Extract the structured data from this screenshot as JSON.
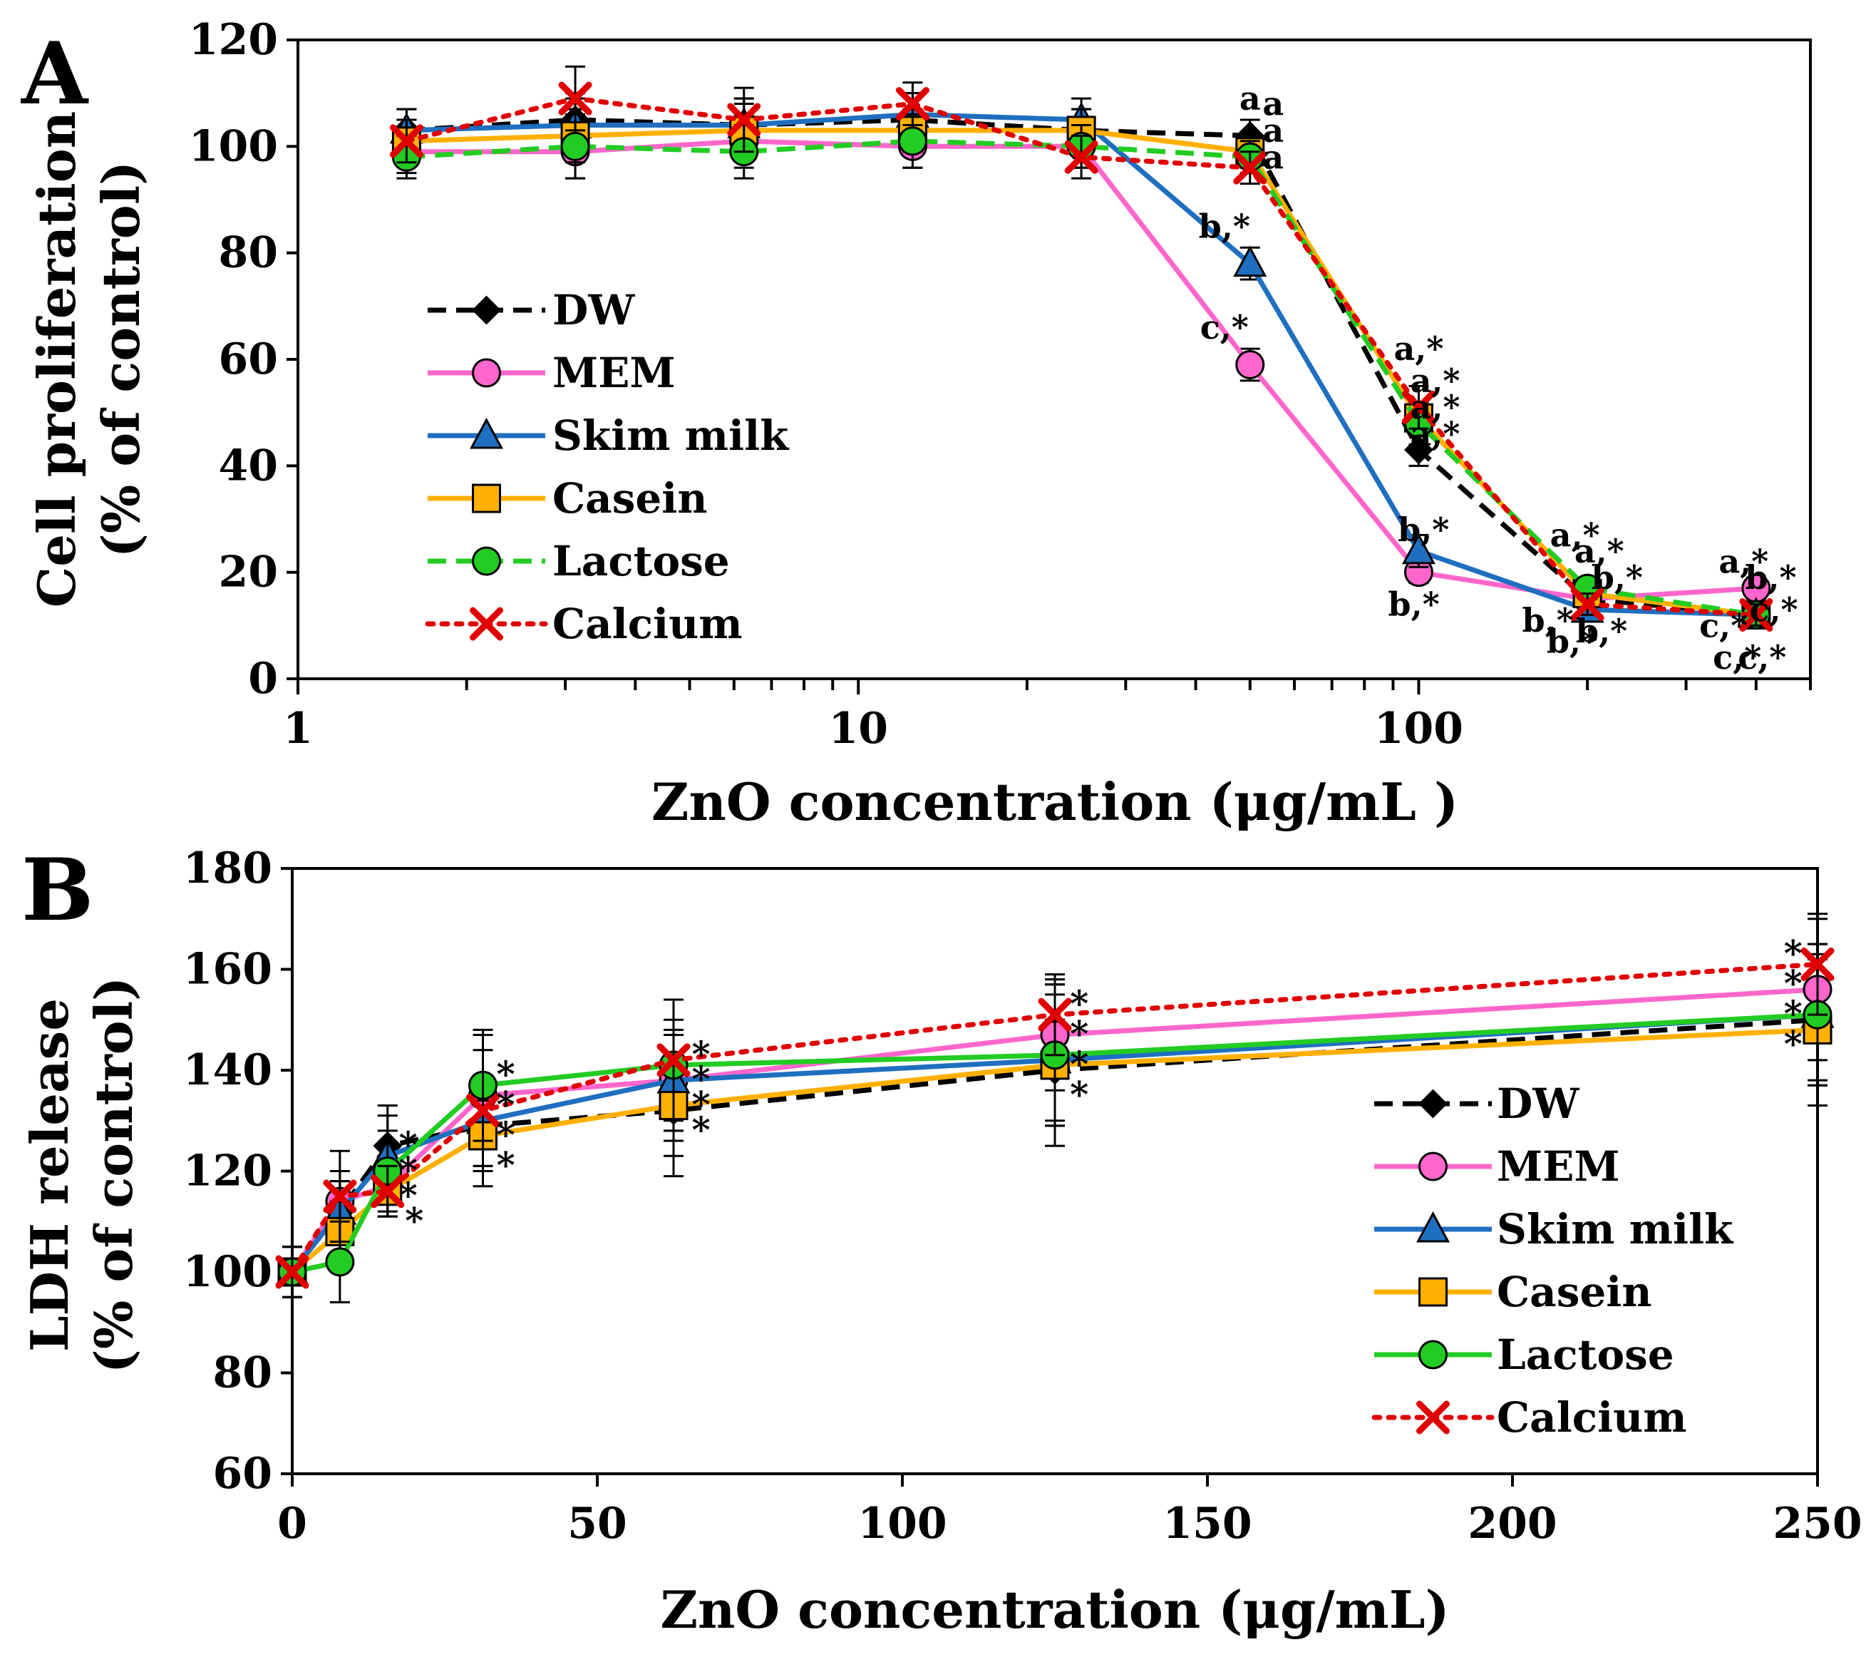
{
  "chart_data": [
    {
      "panel": "A",
      "type": "line",
      "xscale": "log",
      "xlabel": "ZnO concentration (μg/mL )",
      "ylabel_line1": "Cell proliferation",
      "ylabel_line2": "(% of control)",
      "xlim": [
        1,
        500
      ],
      "ylim": [
        0,
        120
      ],
      "x_ticks": [
        1,
        10,
        100
      ],
      "x_tick_labels": [
        "1",
        "10",
        "100"
      ],
      "y_ticks": [
        0,
        20,
        40,
        60,
        80,
        100,
        120
      ],
      "y_tick_labels": [
        "0",
        "20",
        "40",
        "60",
        "80",
        "100",
        "120"
      ],
      "x": [
        1.5625,
        3.125,
        6.25,
        12.5,
        25,
        50,
        100,
        200,
        400
      ],
      "legend_position": "left-middle",
      "series": [
        {
          "name": "DW",
          "color": "#000000",
          "dash": "dashed",
          "marker": "diamond",
          "values": [
            103,
            105,
            104,
            105,
            103,
            102,
            43,
            15,
            12
          ],
          "errors": [
            4,
            5,
            5,
            5,
            4,
            3,
            3,
            2,
            2
          ]
        },
        {
          "name": "MEM",
          "color": "#ff66cc",
          "dash": "solid",
          "marker": "circle",
          "values": [
            99,
            99,
            101,
            100,
            100,
            59,
            20,
            15,
            17
          ],
          "errors": [
            4,
            5,
            5,
            4,
            4,
            3,
            2,
            2,
            2
          ]
        },
        {
          "name": "Skim milk",
          "color": "#1f6fc0",
          "dash": "solid",
          "marker": "triangle",
          "values": [
            103,
            104,
            104,
            106,
            105,
            78,
            24,
            13,
            12
          ],
          "errors": [
            4,
            5,
            5,
            4,
            4,
            3,
            3,
            2,
            2
          ]
        },
        {
          "name": "Casein",
          "color": "#ffb000",
          "dash": "solid",
          "marker": "square",
          "values": [
            101,
            102,
            103,
            103,
            103,
            99,
            49,
            16,
            12
          ],
          "errors": [
            4,
            5,
            5,
            4,
            4,
            3,
            3,
            2,
            2
          ]
        },
        {
          "name": "Lactose",
          "color": "#22cc22",
          "dash": "dashed",
          "marker": "circle",
          "values": [
            98,
            100,
            99,
            101,
            100,
            98,
            48,
            17,
            12
          ],
          "errors": [
            4,
            6,
            5,
            5,
            4,
            3,
            4,
            2,
            2
          ]
        },
        {
          "name": "Calcium",
          "color": "#e00000",
          "dash": "dotted",
          "marker": "x",
          "values": [
            101,
            109,
            105,
            108,
            98,
            96,
            51,
            14,
            12
          ],
          "errors": [
            4,
            6,
            6,
            4,
            4,
            3,
            4,
            2,
            2
          ]
        }
      ],
      "annotations": [
        {
          "text": "a",
          "x": 50,
          "y": 109
        },
        {
          "text": "a",
          "x": 55,
          "y": 108
        },
        {
          "text": "a",
          "x": 55,
          "y": 103
        },
        {
          "text": "a",
          "x": 55,
          "y": 98
        },
        {
          "text": "b,*",
          "x": 45,
          "y": 85
        },
        {
          "text": "c,*",
          "x": 45,
          "y": 66
        },
        {
          "text": "a,*",
          "x": 100,
          "y": 62
        },
        {
          "text": "a,*",
          "x": 107,
          "y": 56
        },
        {
          "text": "a,*",
          "x": 107,
          "y": 51
        },
        {
          "text": "a,*",
          "x": 107,
          "y": 46
        },
        {
          "text": "b,*",
          "x": 102,
          "y": 28
        },
        {
          "text": "b,*",
          "x": 98,
          "y": 14
        },
        {
          "text": "a,*",
          "x": 190,
          "y": 27
        },
        {
          "text": "a,*",
          "x": 210,
          "y": 24
        },
        {
          "text": "b,*",
          "x": 226,
          "y": 19
        },
        {
          "text": "b,*",
          "x": 170,
          "y": 11
        },
        {
          "text": "b,*",
          "x": 188,
          "y": 7
        },
        {
          "text": "b,*",
          "x": 212,
          "y": 9
        },
        {
          "text": "a,*",
          "x": 380,
          "y": 22
        },
        {
          "text": "b,*",
          "x": 425,
          "y": 19
        },
        {
          "text": "c,*",
          "x": 430,
          "y": 13
        },
        {
          "text": "c,*",
          "x": 350,
          "y": 10
        },
        {
          "text": "c,*",
          "x": 370,
          "y": 4
        },
        {
          "text": "c,*",
          "x": 410,
          "y": 4
        }
      ]
    },
    {
      "panel": "B",
      "type": "line",
      "xscale": "linear",
      "xlabel": "ZnO concentration (μg/mL)",
      "ylabel_line1": "LDH release",
      "ylabel_line2": "(% of control)",
      "xlim": [
        0,
        250
      ],
      "ylim": [
        60,
        180
      ],
      "x_ticks": [
        0,
        50,
        100,
        150,
        200,
        250
      ],
      "x_tick_labels": [
        "0",
        "50",
        "100",
        "150",
        "200",
        "250"
      ],
      "y_ticks": [
        60,
        80,
        100,
        120,
        140,
        160,
        180
      ],
      "y_tick_labels": [
        "60",
        "80",
        "100",
        "120",
        "140",
        "160",
        "180"
      ],
      "x": [
        0,
        7.8125,
        15.625,
        31.25,
        62.5,
        125,
        250
      ],
      "legend_position": "bottom-right",
      "series": [
        {
          "name": "DW",
          "color": "#000000",
          "dash": "dashed",
          "marker": "diamond",
          "values": [
            100,
            112,
            125,
            129,
            132,
            140,
            150
          ],
          "errors": [
            5,
            6,
            8,
            8,
            9,
            10,
            12
          ]
        },
        {
          "name": "MEM",
          "color": "#ff66cc",
          "dash": "solid",
          "marker": "circle",
          "values": [
            100,
            114,
            117,
            135,
            138,
            147,
            156
          ],
          "errors": [
            5,
            6,
            6,
            9,
            12,
            11,
            14
          ]
        },
        {
          "name": "Skim milk",
          "color": "#1f6fc0",
          "dash": "solid",
          "marker": "triangle",
          "values": [
            100,
            112,
            123,
            130,
            138,
            142,
            151
          ],
          "errors": [
            5,
            6,
            8,
            9,
            10,
            13,
            14
          ]
        },
        {
          "name": "Casein",
          "color": "#ffb000",
          "dash": "solid",
          "marker": "square",
          "values": [
            100,
            108,
            116,
            127,
            133,
            141,
            148
          ],
          "errors": [
            5,
            6,
            5,
            7,
            14,
            16,
            15
          ]
        },
        {
          "name": "Lactose",
          "color": "#22cc22",
          "dash": "solid",
          "marker": "circle",
          "values": [
            100,
            102,
            120,
            137,
            141,
            143,
            151
          ],
          "errors": [
            5,
            8,
            8,
            11,
            13,
            14,
            14
          ]
        },
        {
          "name": "Calcium",
          "color": "#e00000",
          "dash": "dotted",
          "marker": "x",
          "values": [
            100,
            115,
            116,
            132,
            142,
            151,
            161
          ],
          "errors": [
            5,
            9,
            5,
            15,
            12,
            8,
            10
          ]
        }
      ],
      "annotations": [
        {
          "text": "*",
          "x": 19,
          "y": 125
        },
        {
          "text": "*",
          "x": 19,
          "y": 120
        },
        {
          "text": "*",
          "x": 19,
          "y": 115
        },
        {
          "text": "*",
          "x": 20,
          "y": 110
        },
        {
          "text": "*",
          "x": 35,
          "y": 139
        },
        {
          "text": "*",
          "x": 35,
          "y": 133
        },
        {
          "text": "*",
          "x": 35,
          "y": 127
        },
        {
          "text": "*",
          "x": 35,
          "y": 121
        },
        {
          "text": "*",
          "x": 67,
          "y": 143
        },
        {
          "text": "*",
          "x": 67,
          "y": 138
        },
        {
          "text": "*",
          "x": 67,
          "y": 133
        },
        {
          "text": "*",
          "x": 67,
          "y": 128
        },
        {
          "text": "*",
          "x": 129,
          "y": 153
        },
        {
          "text": "*",
          "x": 129,
          "y": 147
        },
        {
          "text": "*",
          "x": 129,
          "y": 141
        },
        {
          "text": "*",
          "x": 129,
          "y": 135
        },
        {
          "text": "*",
          "x": 246,
          "y": 163
        },
        {
          "text": "*",
          "x": 246,
          "y": 157
        },
        {
          "text": "*",
          "x": 246,
          "y": 151
        },
        {
          "text": "*",
          "x": 246,
          "y": 145
        }
      ]
    }
  ],
  "panel_labels": {
    "a": "A",
    "b": "B"
  }
}
